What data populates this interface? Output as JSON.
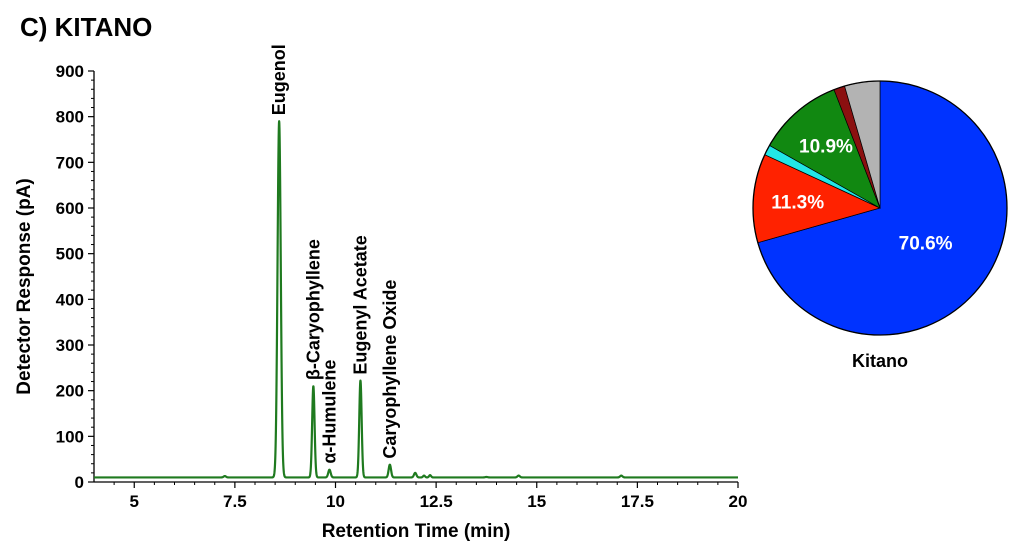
{
  "panel_title": "C) KITANO",
  "colors": {
    "trace": "#1f7a1f",
    "axis": "#000000",
    "pie": [
      "#0033ff",
      "#ff2200",
      "#22e6e6",
      "#118811",
      "#8b1010",
      "#b3b3b3"
    ]
  },
  "chart_data": [
    {
      "type": "line",
      "title": "",
      "xlabel": "Retention Time (min)",
      "ylabel": "Detector Response (pA)",
      "xlim": [
        4,
        20
      ],
      "ylim": [
        0,
        900
      ],
      "xticks": [
        5,
        7.5,
        10,
        12.5,
        15,
        17.5,
        20
      ],
      "xtick_labels": [
        "5",
        "7.5",
        "10",
        "12.5",
        "15",
        "17.5",
        "20"
      ],
      "yticks": [
        0,
        100,
        200,
        300,
        400,
        500,
        600,
        700,
        800,
        900
      ],
      "ytick_labels": [
        "0",
        "100",
        "200",
        "300",
        "400",
        "500",
        "600",
        "700",
        "800",
        "900"
      ],
      "baseline": 10,
      "series": [
        {
          "peaks": [
            {
              "rt": 7.25,
              "height": 13,
              "width": 0.03
            },
            {
              "rt": 8.6,
              "height": 790,
              "width": 0.04
            },
            {
              "rt": 9.45,
              "height": 210,
              "width": 0.03
            },
            {
              "rt": 9.85,
              "height": 27,
              "width": 0.03
            },
            {
              "rt": 10.62,
              "height": 222,
              "width": 0.03
            },
            {
              "rt": 11.35,
              "height": 38,
              "width": 0.03
            },
            {
              "rt": 11.98,
              "height": 20,
              "width": 0.03
            },
            {
              "rt": 12.2,
              "height": 14,
              "width": 0.025
            },
            {
              "rt": 12.35,
              "height": 15,
              "width": 0.025
            },
            {
              "rt": 13.75,
              "height": 11,
              "width": 0.03
            },
            {
              "rt": 14.55,
              "height": 14,
              "width": 0.03
            },
            {
              "rt": 17.1,
              "height": 14,
              "width": 0.03
            }
          ]
        }
      ],
      "annotations": [
        {
          "text": "Eugenol",
          "x": 8.6,
          "y": 790
        },
        {
          "text": "β-Caryophyllene",
          "x": 9.45,
          "y": 210
        },
        {
          "text": "α-Humulene",
          "x": 9.85,
          "y": 27
        },
        {
          "text": "Eugenyl Acetate",
          "x": 10.62,
          "y": 222
        },
        {
          "text": "Caryophyllene Oxide",
          "x": 11.35,
          "y": 38
        }
      ]
    },
    {
      "type": "pie",
      "title": "Kitano",
      "values": [
        70.6,
        11.3,
        1.3,
        10.9,
        1.4,
        4.5
      ],
      "labels": [
        "70.6%",
        "11.3%",
        "",
        "10.9%",
        "",
        ""
      ]
    }
  ]
}
